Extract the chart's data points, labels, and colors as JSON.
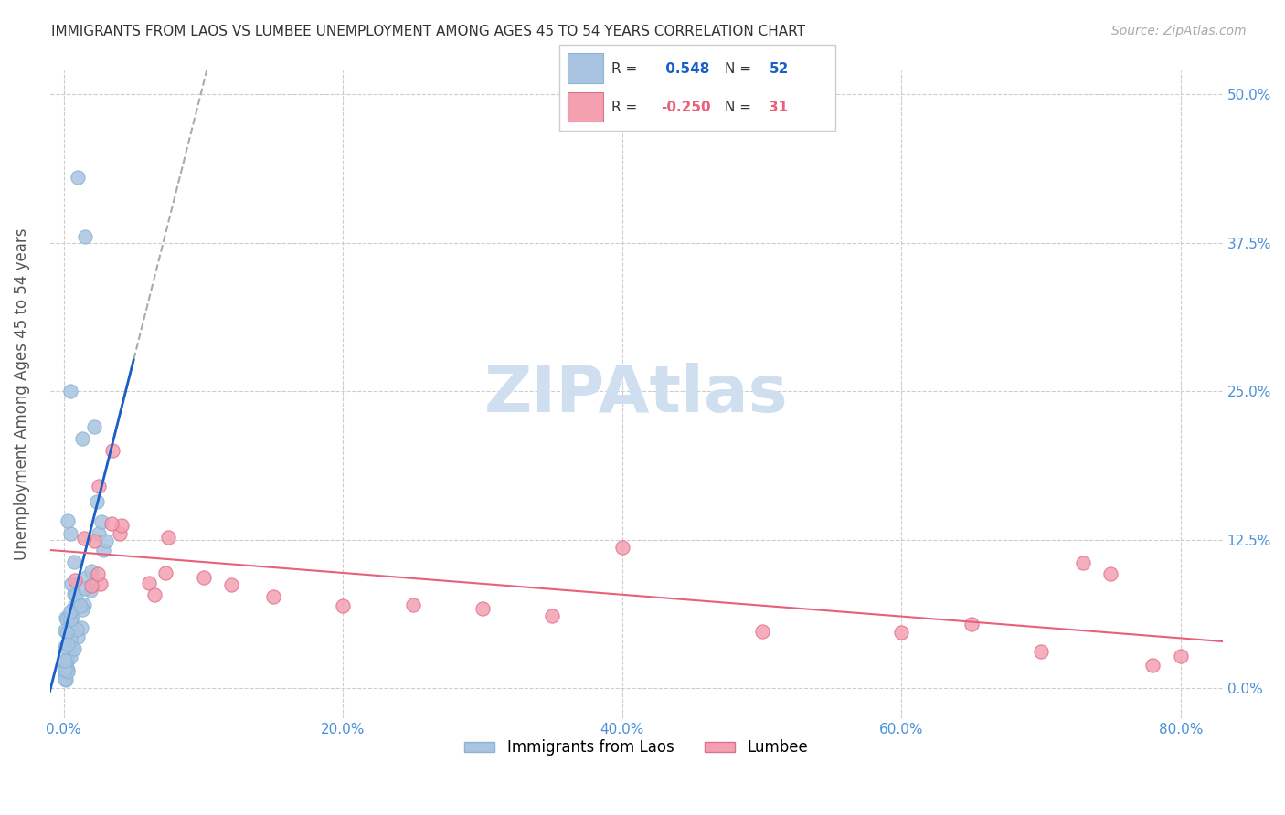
{
  "title": "IMMIGRANTS FROM LAOS VS LUMBEE UNEMPLOYMENT AMONG AGES 45 TO 54 YEARS CORRELATION CHART",
  "source": "Source: ZipAtlas.com",
  "xlabel_ticks": [
    "0.0%",
    "20.0%",
    "40.0%",
    "60.0%",
    "80.0%"
  ],
  "xlabel_tick_vals": [
    0.0,
    0.2,
    0.4,
    0.6,
    0.8
  ],
  "ylabel_ticks": [
    "0.0%",
    "12.5%",
    "25.0%",
    "37.5%",
    "50.0%"
  ],
  "ylabel_tick_vals": [
    0.0,
    0.125,
    0.25,
    0.375,
    0.5
  ],
  "ylabel": "Unemployment Among Ages 45 to 54 years",
  "legend_label1": "Immigrants from Laos",
  "legend_label2": "Lumbee",
  "R1": 0.548,
  "N1": 52,
  "R2": -0.25,
  "N2": 31,
  "color1": "#a8c4e0",
  "color2": "#f4a0b0",
  "trend_color1": "#1a5fc8",
  "trend_color2": "#e8607a",
  "title_color": "#333333",
  "source_color": "#aaaaaa",
  "axis_color": "#4a90d9",
  "watermark_color": "#d0dff0"
}
